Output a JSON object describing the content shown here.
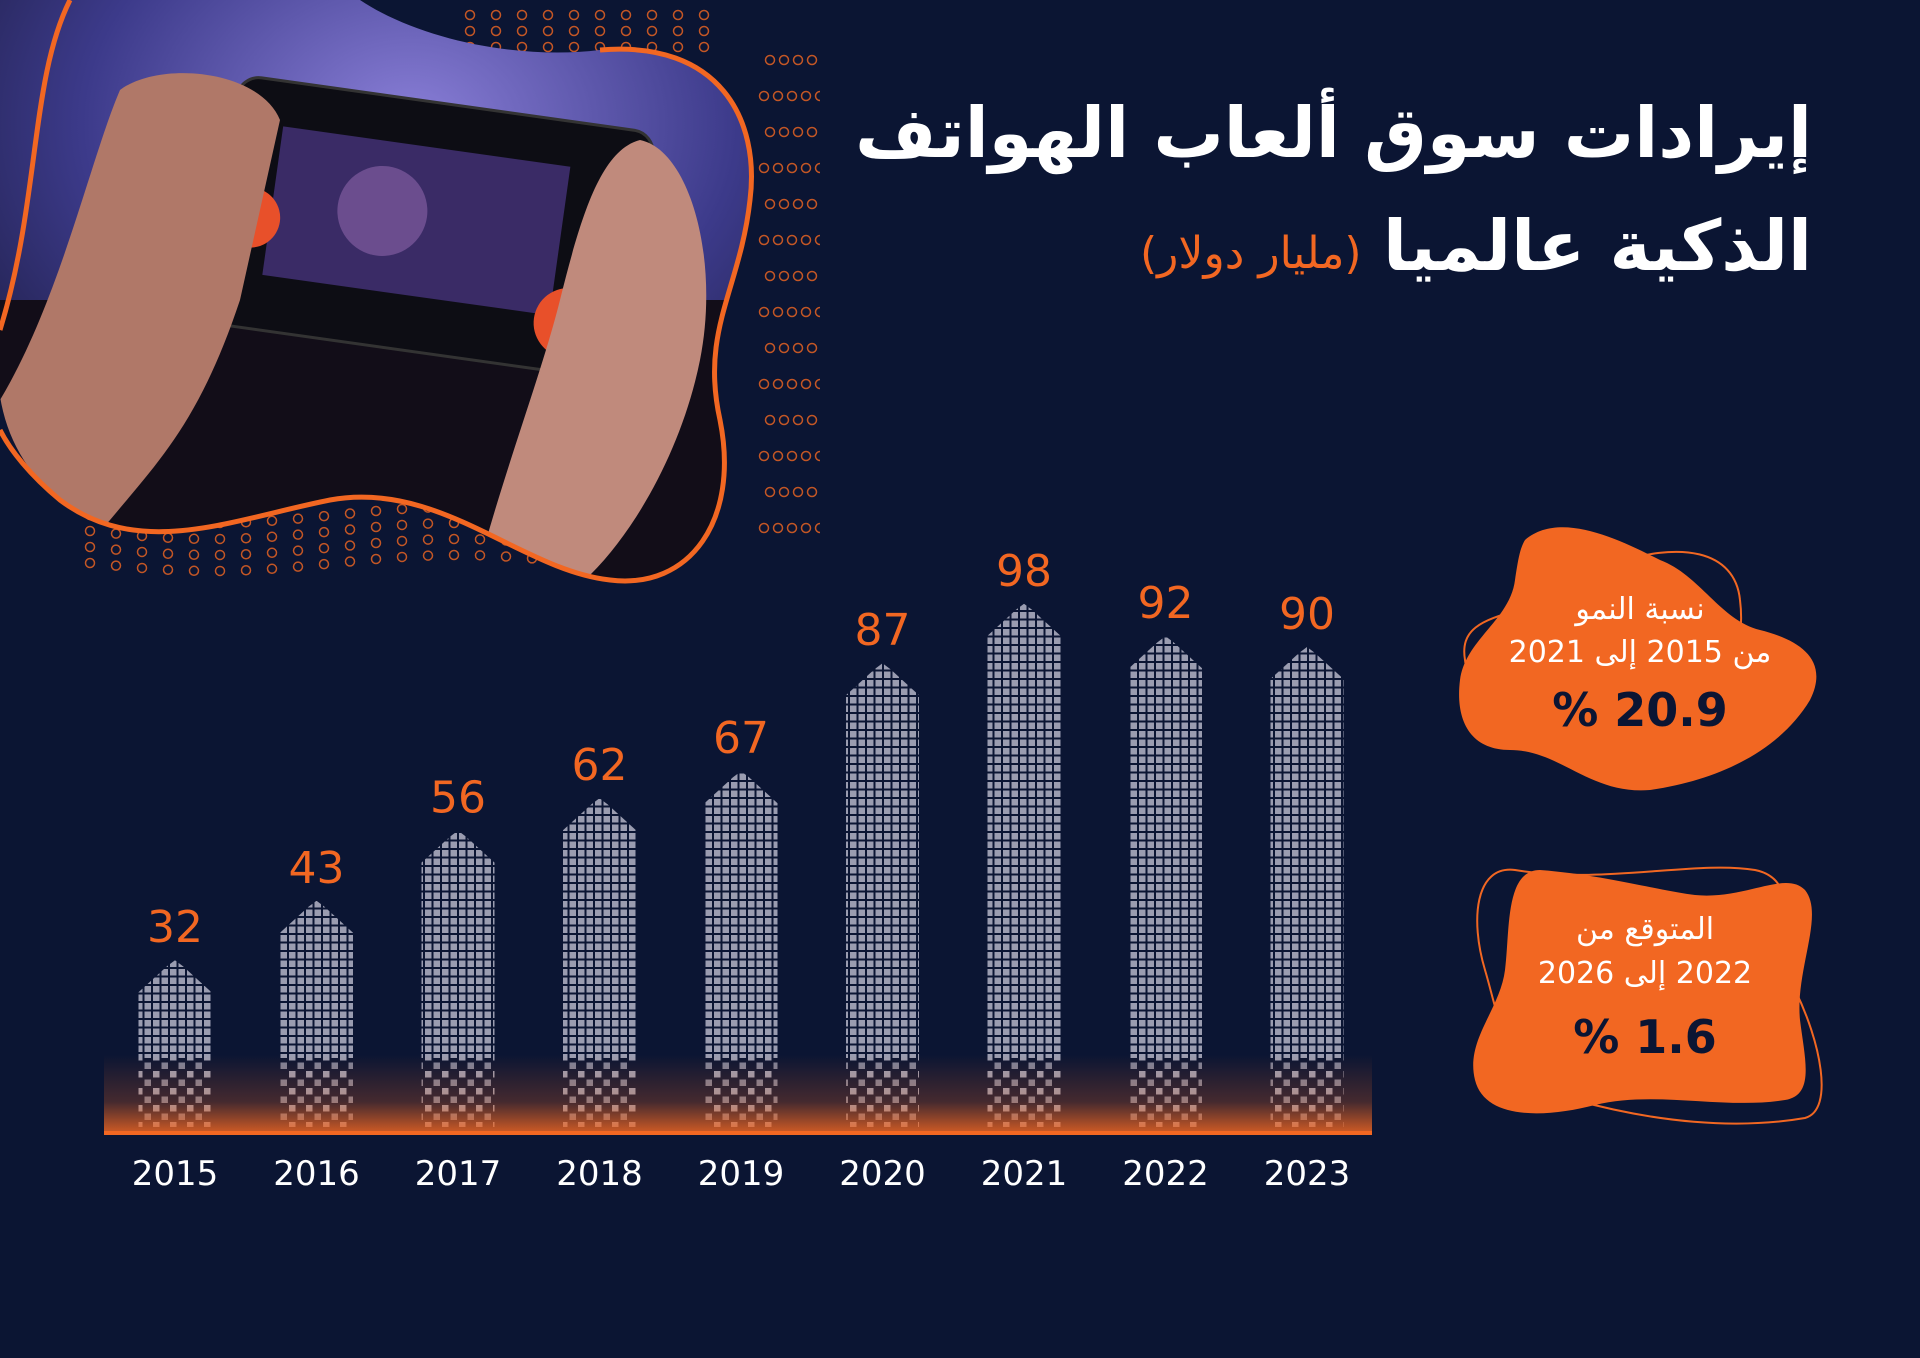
{
  "title_line1": "إيرادات سوق ألعاب الهواتف",
  "title_line2": "الذكية عالميا",
  "unit": "(مليار دولار)",
  "colors": {
    "background": "#0b1533",
    "accent": "#f26722",
    "bars": "#9a9cb0"
  },
  "chart_data": {
    "type": "bar",
    "categories": [
      "2015",
      "2016",
      "2017",
      "2018",
      "2019",
      "2020",
      "2021",
      "2022",
      "2023"
    ],
    "values": [
      32,
      43,
      56,
      62,
      67,
      87,
      98,
      92,
      90
    ],
    "title": "إيرادات سوق ألعاب الهواتف الذكية عالميا",
    "ylabel": "(مليار دولار)",
    "ylim": [
      0,
      100
    ],
    "grid": false
  },
  "callouts": [
    {
      "line1": "نسبة النمو",
      "line2": "من 2015 إلى 2021",
      "value": "20.9 %"
    },
    {
      "line1": "المتوقع من",
      "line2": "2022 إلى 2026",
      "value": "1.6 %"
    }
  ],
  "image": {
    "icon": "phone-gaming-photo"
  }
}
